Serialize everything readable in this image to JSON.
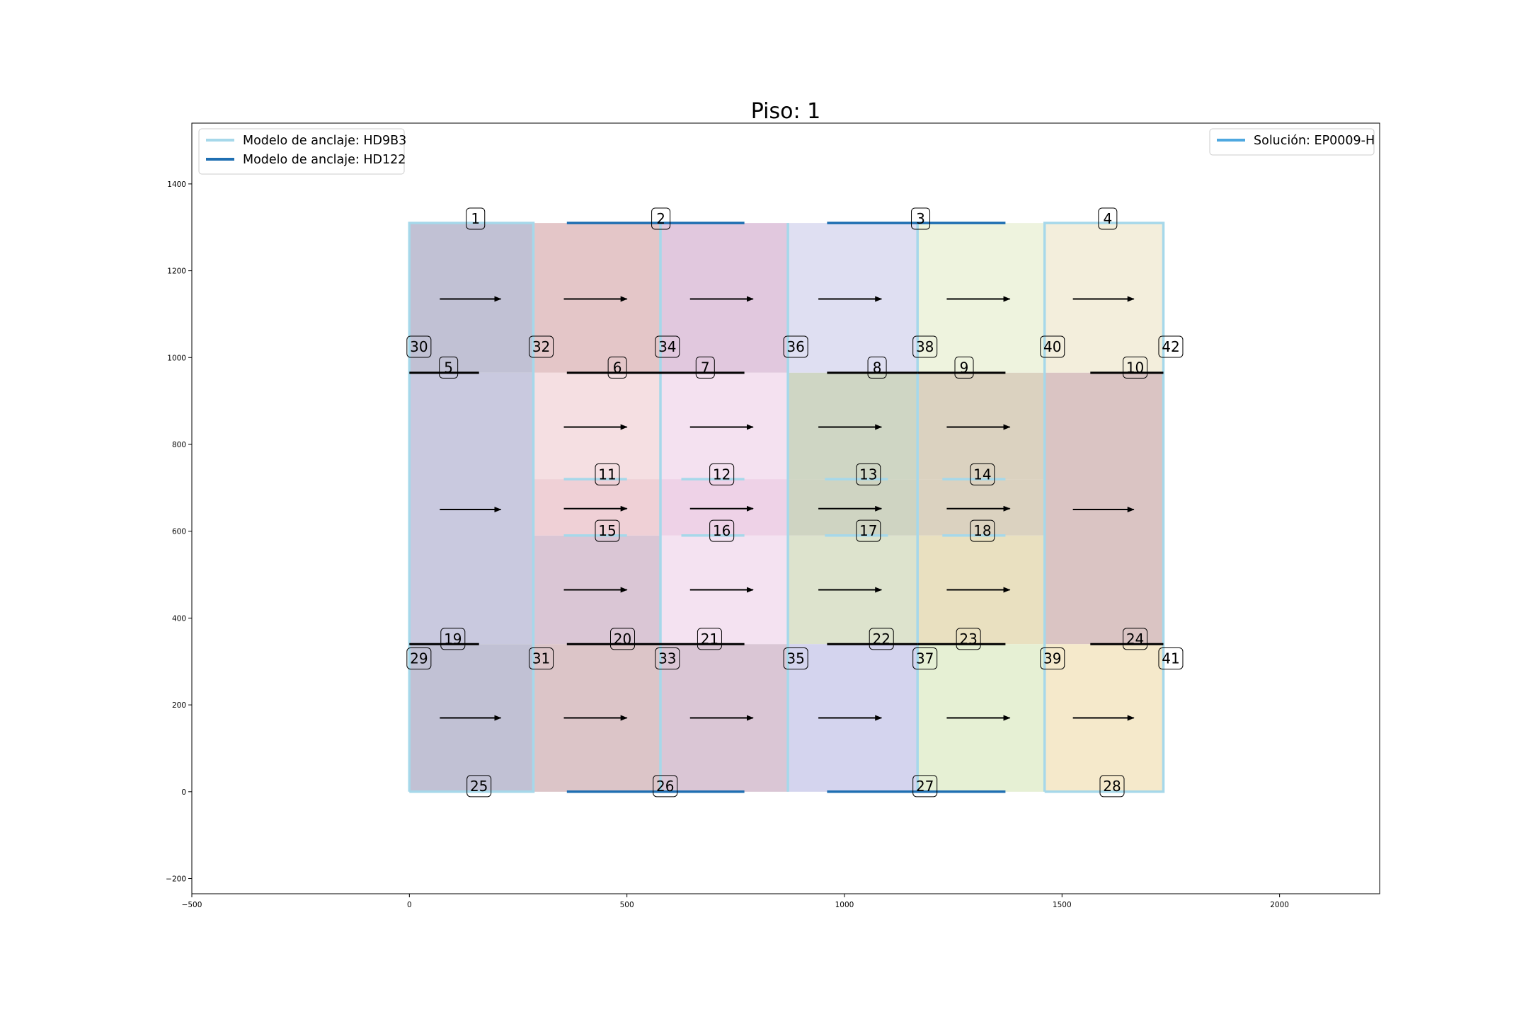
{
  "chart_data": {
    "type": "diagram",
    "title": "Piso: 1",
    "xlim": [
      -500,
      2230
    ],
    "ylim": [
      -235,
      1540
    ],
    "xticks": [
      -500,
      0,
      500,
      1000,
      1500,
      2000
    ],
    "yticks": [
      -200,
      0,
      200,
      400,
      600,
      800,
      1000,
      1200,
      1400
    ],
    "xtick_labels": [
      "−500",
      "0",
      "500",
      "1000",
      "1500",
      "2000"
    ],
    "ytick_labels": [
      "−200",
      "0",
      "200",
      "400",
      "600",
      "800",
      "1000",
      "1200",
      "1400"
    ],
    "legends": [
      {
        "placement": "top-left",
        "entries": [
          {
            "label": "Modelo de anclaje: HD9B3",
            "color": "#a6d8ea"
          },
          {
            "label": "Modelo de anclaje: HD122",
            "color": "#1f6fb2"
          }
        ]
      },
      {
        "placement": "top-right",
        "entries": [
          {
            "label": "Solución: EP0009-H",
            "color": "#4ea8e0"
          }
        ]
      }
    ],
    "regions": [
      {
        "x0": 0,
        "y0": 965,
        "x1": 285,
        "y1": 1310,
        "color": "#c1c1d4"
      },
      {
        "x0": 285,
        "y0": 965,
        "x1": 577,
        "y1": 1310,
        "color": "#e4c6c8"
      },
      {
        "x0": 577,
        "y0": 965,
        "x1": 870,
        "y1": 1310,
        "color": "#e1c8de"
      },
      {
        "x0": 870,
        "y0": 965,
        "x1": 1168,
        "y1": 1310,
        "color": "#dfdff2"
      },
      {
        "x0": 1168,
        "y0": 965,
        "x1": 1460,
        "y1": 1310,
        "color": "#eef3de"
      },
      {
        "x0": 1460,
        "y0": 965,
        "x1": 1733,
        "y1": 1310,
        "color": "#f3eedc"
      },
      {
        "x0": 0,
        "y0": 340,
        "x1": 285,
        "y1": 965,
        "color": "#c9c9df"
      },
      {
        "x0": 285,
        "y0": 720,
        "x1": 577,
        "y1": 965,
        "color": "#f5dfe2"
      },
      {
        "x0": 577,
        "y0": 720,
        "x1": 870,
        "y1": 965,
        "color": "#f4e1f0"
      },
      {
        "x0": 870,
        "y0": 720,
        "x1": 1168,
        "y1": 965,
        "color": "#cfd6c4"
      },
      {
        "x0": 1168,
        "y0": 720,
        "x1": 1460,
        "y1": 965,
        "color": "#dbd2c0"
      },
      {
        "x0": 1460,
        "y0": 340,
        "x1": 1733,
        "y1": 965,
        "color": "#dac4c3"
      },
      {
        "x0": 285,
        "y0": 590,
        "x1": 577,
        "y1": 720,
        "color": "#efd0d6"
      },
      {
        "x0": 577,
        "y0": 590,
        "x1": 870,
        "y1": 720,
        "color": "#eed2e7"
      },
      {
        "x0": 870,
        "y0": 590,
        "x1": 1168,
        "y1": 720,
        "color": "#cfd4c2"
      },
      {
        "x0": 1168,
        "y0": 590,
        "x1": 1460,
        "y1": 720,
        "color": "#dbd2c0"
      },
      {
        "x0": 285,
        "y0": 340,
        "x1": 577,
        "y1": 590,
        "color": "#dac6d5"
      },
      {
        "x0": 577,
        "y0": 340,
        "x1": 870,
        "y1": 590,
        "color": "#f4e2f1"
      },
      {
        "x0": 870,
        "y0": 340,
        "x1": 1168,
        "y1": 590,
        "color": "#dde3cd"
      },
      {
        "x0": 1168,
        "y0": 340,
        "x1": 1460,
        "y1": 590,
        "color": "#e9e0c0"
      },
      {
        "x0": 0,
        "y0": 0,
        "x1": 285,
        "y1": 340,
        "color": "#c1c1d4"
      },
      {
        "x0": 285,
        "y0": 0,
        "x1": 577,
        "y1": 340,
        "color": "#dcc5c8"
      },
      {
        "x0": 577,
        "y0": 0,
        "x1": 870,
        "y1": 340,
        "color": "#dac6d5"
      },
      {
        "x0": 870,
        "y0": 0,
        "x1": 1168,
        "y1": 340,
        "color": "#d4d4ee"
      },
      {
        "x0": 1168,
        "y0": 0,
        "x1": 1460,
        "y1": 340,
        "color": "#e6f0d4"
      },
      {
        "x0": 1460,
        "y0": 0,
        "x1": 1733,
        "y1": 340,
        "color": "#f5e9cb"
      }
    ],
    "arrows": [
      [
        70,
        1135,
        210,
        1135
      ],
      [
        355,
        1135,
        500,
        1135
      ],
      [
        645,
        1135,
        790,
        1135
      ],
      [
        940,
        1135,
        1085,
        1135
      ],
      [
        1235,
        1135,
        1380,
        1135
      ],
      [
        1525,
        1135,
        1665,
        1135
      ],
      [
        355,
        840,
        500,
        840
      ],
      [
        645,
        840,
        790,
        840
      ],
      [
        940,
        840,
        1085,
        840
      ],
      [
        1235,
        840,
        1380,
        840
      ],
      [
        70,
        650,
        210,
        650
      ],
      [
        355,
        652,
        500,
        652
      ],
      [
        645,
        652,
        790,
        652
      ],
      [
        940,
        652,
        1085,
        652
      ],
      [
        1235,
        652,
        1380,
        652
      ],
      [
        1525,
        650,
        1665,
        650
      ],
      [
        355,
        465,
        500,
        465
      ],
      [
        645,
        465,
        790,
        465
      ],
      [
        940,
        465,
        1085,
        465
      ],
      [
        1235,
        465,
        1380,
        465
      ],
      [
        70,
        170,
        210,
        170
      ],
      [
        355,
        170,
        500,
        170
      ],
      [
        645,
        170,
        790,
        170
      ],
      [
        940,
        170,
        1085,
        170
      ],
      [
        1235,
        170,
        1380,
        170
      ],
      [
        1525,
        170,
        1665,
        170
      ]
    ],
    "walls": [
      {
        "points": [
          [
            0,
            0
          ],
          [
            285,
            0
          ],
          [
            285,
            1310
          ],
          [
            0,
            1310
          ],
          [
            0,
            0
          ]
        ],
        "kind": "HD9B3"
      },
      {
        "points": [
          [
            1460,
            0
          ],
          [
            1733,
            0
          ],
          [
            1733,
            1310
          ],
          [
            1460,
            1310
          ],
          [
            1460,
            0
          ]
        ],
        "kind": "HD9B3"
      },
      {
        "points": [
          [
            577,
            0
          ],
          [
            577,
            1310
          ]
        ],
        "kind": "HD9B3"
      },
      {
        "points": [
          [
            870,
            0
          ],
          [
            870,
            1310
          ]
        ],
        "kind": "HD9B3"
      },
      {
        "points": [
          [
            1168,
            0
          ],
          [
            1168,
            1310
          ]
        ],
        "kind": "HD9B3"
      },
      {
        "points": [
          [
            355,
            720
          ],
          [
            500,
            720
          ]
        ],
        "kind": "HD9B3"
      },
      {
        "points": [
          [
            625,
            720
          ],
          [
            770,
            720
          ]
        ],
        "kind": "HD9B3"
      },
      {
        "points": [
          [
            955,
            720
          ],
          [
            1100,
            720
          ]
        ],
        "kind": "HD9B3"
      },
      {
        "points": [
          [
            1225,
            720
          ],
          [
            1370,
            720
          ]
        ],
        "kind": "HD9B3"
      },
      {
        "points": [
          [
            355,
            590
          ],
          [
            500,
            590
          ]
        ],
        "kind": "HD9B3"
      },
      {
        "points": [
          [
            625,
            590
          ],
          [
            770,
            590
          ]
        ],
        "kind": "HD9B3"
      },
      {
        "points": [
          [
            955,
            590
          ],
          [
            1100,
            590
          ]
        ],
        "kind": "HD9B3"
      },
      {
        "points": [
          [
            1225,
            590
          ],
          [
            1370,
            590
          ]
        ],
        "kind": "HD9B3"
      },
      {
        "points": [
          [
            362,
            1310
          ],
          [
            770,
            1310
          ]
        ],
        "kind": "HD122"
      },
      {
        "points": [
          [
            960,
            1310
          ],
          [
            1370,
            1310
          ]
        ],
        "kind": "HD122"
      },
      {
        "points": [
          [
            362,
            0
          ],
          [
            770,
            0
          ]
        ],
        "kind": "HD122"
      },
      {
        "points": [
          [
            960,
            0
          ],
          [
            1370,
            0
          ]
        ],
        "kind": "HD122"
      },
      {
        "points": [
          [
            0,
            965
          ],
          [
            160,
            965
          ]
        ],
        "kind": "plain"
      },
      {
        "points": [
          [
            362,
            965
          ],
          [
            577,
            965
          ]
        ],
        "kind": "plain"
      },
      {
        "points": [
          [
            577,
            965
          ],
          [
            770,
            965
          ]
        ],
        "kind": "plain"
      },
      {
        "points": [
          [
            960,
            965
          ],
          [
            1168,
            965
          ]
        ],
        "kind": "plain"
      },
      {
        "points": [
          [
            1168,
            965
          ],
          [
            1370,
            965
          ]
        ],
        "kind": "plain"
      },
      {
        "points": [
          [
            1565,
            965
          ],
          [
            1733,
            965
          ]
        ],
        "kind": "plain"
      },
      {
        "points": [
          [
            0,
            340
          ],
          [
            160,
            340
          ]
        ],
        "kind": "plain"
      },
      {
        "points": [
          [
            362,
            340
          ],
          [
            577,
            340
          ]
        ],
        "kind": "plain"
      },
      {
        "points": [
          [
            577,
            340
          ],
          [
            770,
            340
          ]
        ],
        "kind": "plain"
      },
      {
        "points": [
          [
            960,
            340
          ],
          [
            1168,
            340
          ]
        ],
        "kind": "plain"
      },
      {
        "points": [
          [
            1168,
            340
          ],
          [
            1370,
            340
          ]
        ],
        "kind": "plain"
      },
      {
        "points": [
          [
            1565,
            340
          ],
          [
            1733,
            340
          ]
        ],
        "kind": "plain"
      }
    ],
    "wall_colors": {
      "HD9B3": "#a6d8ea",
      "HD122": "#1f6fb2",
      "plain": "#000000"
    },
    "labels": [
      {
        "text": "1",
        "x": 152,
        "y": 1320
      },
      {
        "text": "2",
        "x": 578,
        "y": 1320
      },
      {
        "text": "3",
        "x": 1175,
        "y": 1320
      },
      {
        "text": "4",
        "x": 1605,
        "y": 1320
      },
      {
        "text": "30",
        "x": 22,
        "y": 1025
      },
      {
        "text": "32",
        "x": 303,
        "y": 1025
      },
      {
        "text": "34",
        "x": 593,
        "y": 1025
      },
      {
        "text": "36",
        "x": 888,
        "y": 1025
      },
      {
        "text": "38",
        "x": 1185,
        "y": 1025
      },
      {
        "text": "40",
        "x": 1478,
        "y": 1025
      },
      {
        "text": "42",
        "x": 1750,
        "y": 1025
      },
      {
        "text": "5",
        "x": 90,
        "y": 977
      },
      {
        "text": "6",
        "x": 478,
        "y": 977
      },
      {
        "text": "7",
        "x": 680,
        "y": 977
      },
      {
        "text": "8",
        "x": 1075,
        "y": 977
      },
      {
        "text": "9",
        "x": 1275,
        "y": 977
      },
      {
        "text": "10",
        "x": 1668,
        "y": 977
      },
      {
        "text": "11",
        "x": 455,
        "y": 731
      },
      {
        "text": "12",
        "x": 718,
        "y": 731
      },
      {
        "text": "13",
        "x": 1055,
        "y": 731
      },
      {
        "text": "14",
        "x": 1317,
        "y": 731
      },
      {
        "text": "15",
        "x": 455,
        "y": 601
      },
      {
        "text": "16",
        "x": 718,
        "y": 601
      },
      {
        "text": "17",
        "x": 1055,
        "y": 601
      },
      {
        "text": "18",
        "x": 1317,
        "y": 601
      },
      {
        "text": "19",
        "x": 100,
        "y": 352
      },
      {
        "text": "20",
        "x": 490,
        "y": 352
      },
      {
        "text": "21",
        "x": 690,
        "y": 352
      },
      {
        "text": "22",
        "x": 1085,
        "y": 352
      },
      {
        "text": "23",
        "x": 1285,
        "y": 352
      },
      {
        "text": "24",
        "x": 1668,
        "y": 352
      },
      {
        "text": "29",
        "x": 22,
        "y": 307
      },
      {
        "text": "31",
        "x": 303,
        "y": 307
      },
      {
        "text": "33",
        "x": 593,
        "y": 307
      },
      {
        "text": "35",
        "x": 888,
        "y": 307
      },
      {
        "text": "37",
        "x": 1185,
        "y": 307
      },
      {
        "text": "39",
        "x": 1478,
        "y": 307
      },
      {
        "text": "41",
        "x": 1750,
        "y": 307
      },
      {
        "text": "25",
        "x": 160,
        "y": 13
      },
      {
        "text": "26",
        "x": 588,
        "y": 13
      },
      {
        "text": "27",
        "x": 1185,
        "y": 13
      },
      {
        "text": "28",
        "x": 1615,
        "y": 13
      }
    ]
  }
}
